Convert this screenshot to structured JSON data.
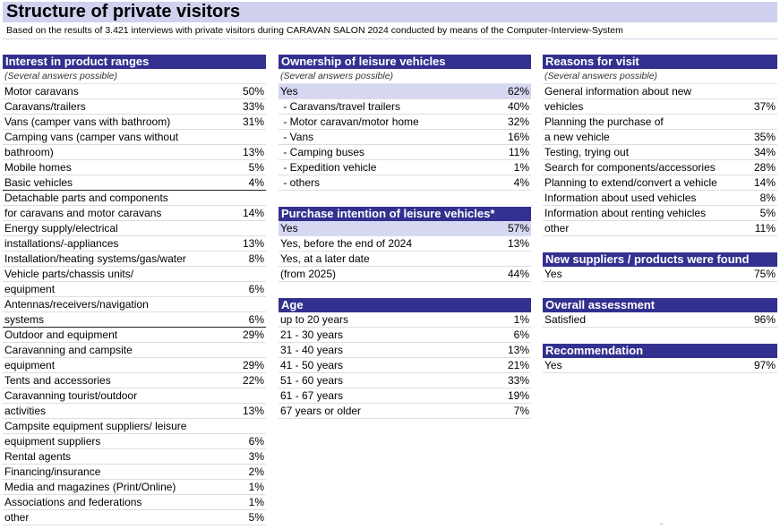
{
  "title": "Structure of private visitors",
  "subtitle": "Based on the results of 3.421 interviews with private visitors during CARAVAN SALON 2024 conducted by means of the Computer-Interview-System",
  "interest": {
    "header": "Interest in product ranges",
    "note": "(Several answers possible)",
    "rows": [
      {
        "label": "Motor caravans",
        "value": "50%"
      },
      {
        "label": "Caravans/trailers",
        "value": "33%"
      },
      {
        "label": "Vans (camper vans with bathroom)",
        "value": "31%"
      },
      {
        "label": "Camping vans (camper vans without",
        "value": ""
      },
      {
        "label": "bathroom)",
        "value": "13%"
      },
      {
        "label": "Mobile homes",
        "value": "5%"
      },
      {
        "label": "Basic vehicles",
        "value": "4%"
      },
      {
        "label": "Detachable parts and components",
        "value": ""
      },
      {
        "label": "for caravans and motor caravans",
        "value": "14%"
      },
      {
        "label": "Energy supply/electrical",
        "value": ""
      },
      {
        "label": "installations/-appliances",
        "value": "13%"
      },
      {
        "label": "Installation/heating systems/gas/water",
        "value": "8%"
      },
      {
        "label": "Vehicle parts/chassis units/",
        "value": ""
      },
      {
        "label": "equipment",
        "value": "6%"
      },
      {
        "label": "Antennas/receivers/navigation",
        "value": ""
      },
      {
        "label": "systems",
        "value": "6%"
      },
      {
        "label": "Outdoor and equipment",
        "value": "29%"
      },
      {
        "label": "Caravanning and campsite",
        "value": ""
      },
      {
        "label": "equipment",
        "value": "29%"
      },
      {
        "label": "Tents and accessories",
        "value": "22%"
      },
      {
        "label": "Caravanning tourist/outdoor",
        "value": ""
      },
      {
        "label": "activities",
        "value": "13%"
      },
      {
        "label": "Campsite equipment suppliers/ leisure",
        "value": ""
      },
      {
        "label": "equipment suppliers",
        "value": "6%"
      },
      {
        "label": "Rental agents",
        "value": "3%"
      },
      {
        "label": "Financing/insurance",
        "value": "2%"
      },
      {
        "label": "Media and magazines (Print/Online)",
        "value": "1%"
      },
      {
        "label": "Associations and federations",
        "value": "1%"
      },
      {
        "label": "other",
        "value": "5%"
      }
    ]
  },
  "ownership": {
    "header": "Ownership of leisure vehicles",
    "note": "(Several answers possible)",
    "rows": [
      {
        "label": "Yes",
        "value": "62%"
      },
      {
        "label": " - Caravans/travel trailers",
        "value": "40%"
      },
      {
        "label": " - Motor caravan/motor home",
        "value": "32%"
      },
      {
        "label": " - Vans",
        "value": "16%"
      },
      {
        "label": " - Camping buses",
        "value": "11%"
      },
      {
        "label": " - Expedition vehicle",
        "value": "1%"
      },
      {
        "label": " - others",
        "value": "4%"
      }
    ]
  },
  "purchase": {
    "header": "Purchase intention of leisure vehicles*",
    "rows": [
      {
        "label": "Yes",
        "value": "57%"
      },
      {
        "label": "Yes, before the end of 2024",
        "value": "13%"
      },
      {
        "label": "Yes, at a later date",
        "value": ""
      },
      {
        "label": "(from 2025)",
        "value": "44%"
      }
    ]
  },
  "age": {
    "header": "Age",
    "rows": [
      {
        "label": "up to 20 years",
        "value": "1%"
      },
      {
        "label": "21 - 30 years",
        "value": "6%"
      },
      {
        "label": "31 - 40 years",
        "value": "13%"
      },
      {
        "label": "41 - 50 years",
        "value": "21%"
      },
      {
        "label": "51 - 60 years",
        "value": "33%"
      },
      {
        "label": "61 - 67 years",
        "value": "19%"
      },
      {
        "label": "67 years or older",
        "value": "7%"
      }
    ]
  },
  "reasons": {
    "header": "Reasons for visit",
    "note": "(Several answers possible)",
    "rows": [
      {
        "label": "General information about new",
        "value": ""
      },
      {
        "label": "vehicles",
        "value": "37%"
      },
      {
        "label": "Planning the purchase of",
        "value": ""
      },
      {
        "label": "a new vehicle",
        "value": "35%"
      },
      {
        "label": "Testing, trying out",
        "value": "34%"
      },
      {
        "label": "Search for components/accessories",
        "value": "28%"
      },
      {
        "label": "Planning to extend/convert a vehicle",
        "value": "14%"
      },
      {
        "label": "Information about used vehicles",
        "value": "8%"
      },
      {
        "label": "Information about renting vehicles",
        "value": "5%"
      },
      {
        "label": "other",
        "value": "11%"
      }
    ]
  },
  "suppliers": {
    "header": "New suppliers / products were found",
    "rows": [
      {
        "label": "Yes",
        "value": "75%"
      }
    ]
  },
  "overall": {
    "header": "Overall assessment",
    "rows": [
      {
        "label": "Satisfied",
        "value": "96%"
      }
    ]
  },
  "recommendation": {
    "header": "Recommendation",
    "rows": [
      {
        "label": "Yes",
        "value": "97%"
      }
    ]
  }
}
